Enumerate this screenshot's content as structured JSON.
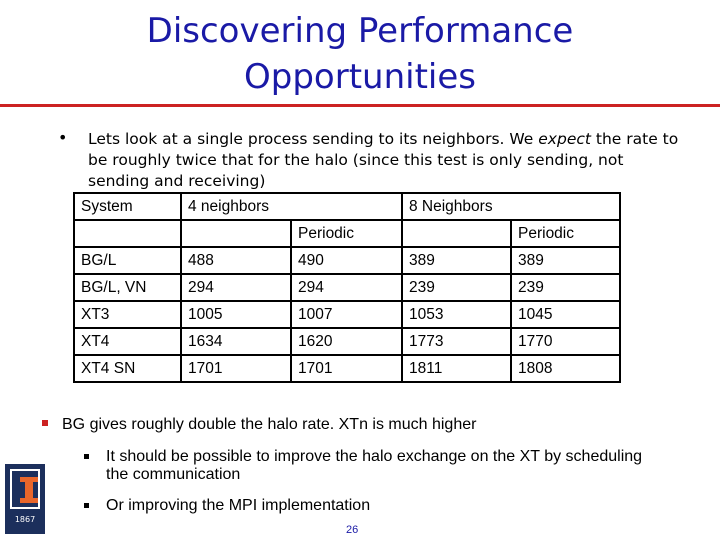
{
  "slide": {
    "title_line1": "Discovering Performance",
    "title_line2": "Opportunities",
    "intro_bullet": "•",
    "intro_a": "Lets look at a single process sending to its neighbors.  We ",
    "intro_em": "expect",
    "intro_b": " the rate to be roughly twice that for the halo (since this test is only sending, not sending and receiving)",
    "table": {
      "header": [
        "System",
        "4 neighbors",
        "8 Neighbors"
      ],
      "subheader": [
        "",
        "",
        "Periodic",
        "",
        "Periodic"
      ],
      "rows": [
        [
          "BG/L",
          "488",
          "490",
          "389",
          "389"
        ],
        [
          "BG/L, VN",
          "294",
          "294",
          "239",
          "239"
        ],
        [
          "XT3",
          "1005",
          "1007",
          "1053",
          "1045"
        ],
        [
          "XT4",
          "1634",
          "1620",
          "1773",
          "1770"
        ],
        [
          "XT4 SN",
          "1701",
          "1701",
          "1811",
          "1808"
        ]
      ]
    },
    "conclusion": "BG gives roughly double the halo rate.  XTn is much higher",
    "sub_bullets": [
      "It should be possible to improve the halo exchange on the XT by scheduling the communication",
      "Or improving the MPI implementation"
    ],
    "logo_year": "1867",
    "page_number": "26",
    "colors": {
      "title": "#1a1aa6",
      "rule": "#cc2222",
      "logo_blue": "#1c2f5c",
      "logo_orange": "#e8662b"
    }
  }
}
